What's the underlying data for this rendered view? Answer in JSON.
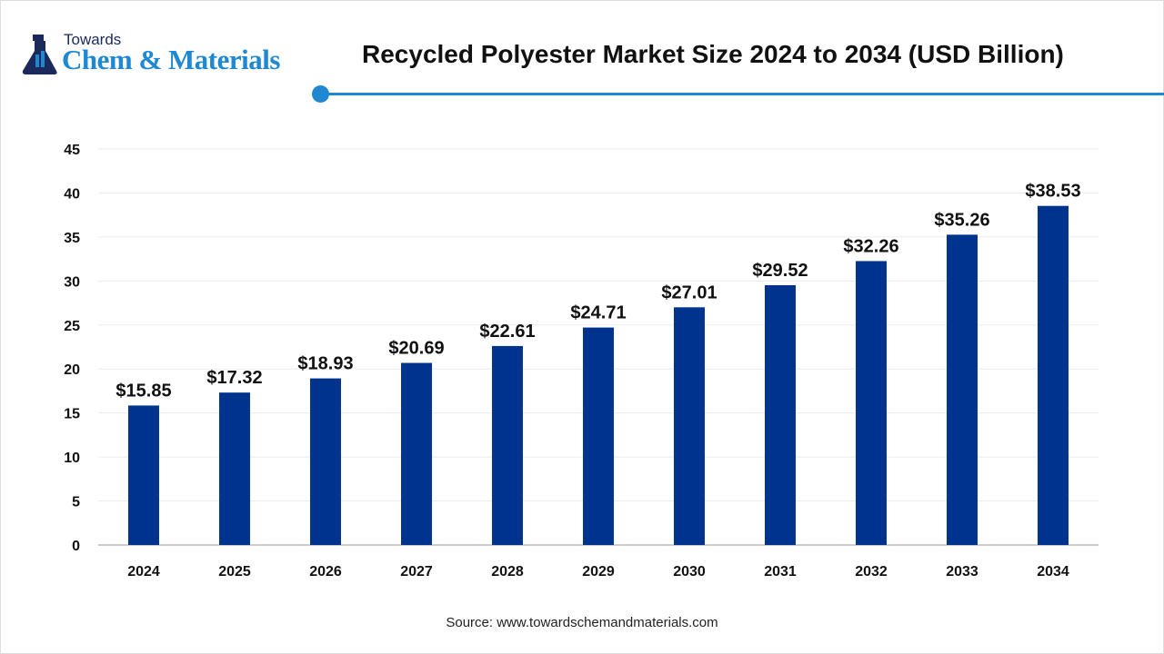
{
  "logo": {
    "top": "Towards",
    "main": "Chem & Materials"
  },
  "title": "Recycled Polyester Market Size 2024 to 2034 (USD Billion)",
  "source": "Source: www.towardschemandmaterials.com",
  "colors": {
    "bar": "#00338d",
    "accent": "#1e88d2"
  },
  "chart_data": {
    "type": "bar",
    "title": "Recycled Polyester Market Size 2024 to 2034 (USD Billion)",
    "categories": [
      "2024",
      "2025",
      "2026",
      "2027",
      "2028",
      "2029",
      "2030",
      "2031",
      "2032",
      "2033",
      "2034"
    ],
    "values": [
      15.85,
      17.32,
      18.93,
      20.69,
      22.61,
      24.71,
      27.01,
      29.52,
      32.26,
      35.26,
      38.53
    ],
    "data_labels": [
      "$15.85",
      "$17.32",
      "$18.93",
      "$20.69",
      "$22.61",
      "$24.71",
      "$27.01",
      "$29.52",
      "$32.26",
      "$35.26",
      "$38.53"
    ],
    "yticks": [
      0,
      5,
      10,
      15,
      20,
      25,
      30,
      35,
      40,
      45
    ],
    "ylim": [
      0,
      45
    ],
    "grid": true,
    "xlabel": "",
    "ylabel": ""
  }
}
